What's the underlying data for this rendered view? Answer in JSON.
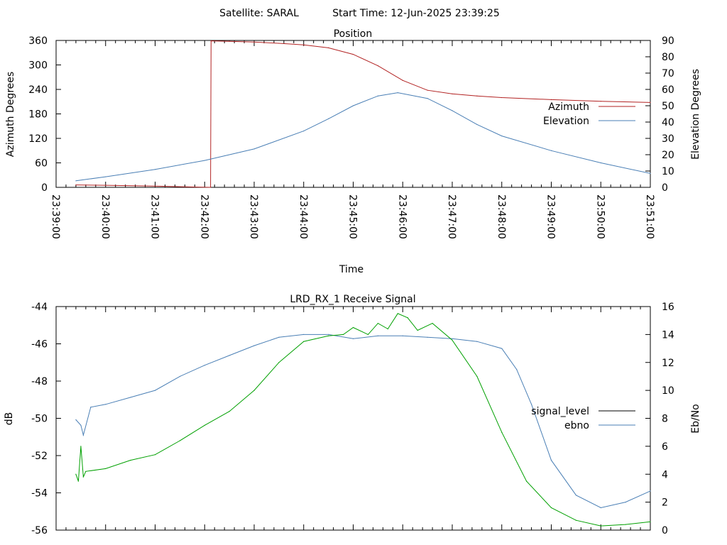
{
  "header": {
    "satellite_label": "Satellite: SARAL",
    "start_time_label": "Start Time: 12-Jun-2025 23:39:25"
  },
  "chart_data": [
    {
      "type": "line",
      "title": "Position",
      "xlabel": "Time",
      "ylabel": "Azimuth Degrees",
      "y2label": "Elevation Degrees",
      "x_ticks": [
        "23:39:00",
        "23:40:00",
        "23:41:00",
        "23:42:00",
        "23:43:00",
        "23:44:00",
        "23:45:00",
        "23:46:00",
        "23:47:00",
        "23:48:00",
        "23:49:00",
        "23:50:00",
        "23:51:00"
      ],
      "xlim_minutes": [
        0,
        12
      ],
      "ylim": [
        0,
        360
      ],
      "y_ticks": [
        "0",
        "60",
        "120",
        "180",
        "240",
        "300",
        "360"
      ],
      "y2lim": [
        0,
        90
      ],
      "y2_ticks": [
        "0",
        "10",
        "20",
        "30",
        "40",
        "50",
        "60",
        "70",
        "80",
        "90"
      ],
      "legend_position": "right",
      "series": [
        {
          "name": "Azimuth",
          "axis": "y",
          "color": "#b22222",
          "x_minutes": [
            0.4,
            1.0,
            2.0,
            3.12,
            3.13,
            3.5,
            4.0,
            4.5,
            5.0,
            5.5,
            6.0,
            6.5,
            7.0,
            7.5,
            8.0,
            8.5,
            9.0,
            10.0,
            11.0,
            12.0
          ],
          "values": [
            6,
            5,
            3,
            0,
            359,
            358,
            356,
            353,
            349,
            342,
            326,
            298,
            262,
            238,
            229,
            224,
            220,
            215,
            211,
            208
          ]
        },
        {
          "name": "Elevation",
          "axis": "y2",
          "color": "#4a7fb5",
          "x_minutes": [
            0.4,
            1.0,
            2.0,
            3.0,
            4.0,
            5.0,
            5.5,
            6.0,
            6.5,
            6.9,
            7.5,
            8.0,
            8.5,
            9.0,
            10.0,
            11.0,
            12.0
          ],
          "values": [
            4,
            6.5,
            11,
            16.5,
            23.5,
            34.5,
            42,
            50,
            56,
            58,
            54.5,
            47,
            38.5,
            31.5,
            22.5,
            15,
            8.5
          ]
        }
      ]
    },
    {
      "type": "line",
      "title": "LRD_RX_1 Receive Signal",
      "ylabel": "dB",
      "y2label": "Eb/No",
      "xlim_minutes": [
        0,
        12
      ],
      "ylim": [
        -56,
        -44
      ],
      "y_ticks": [
        "-44",
        "-46",
        "-48",
        "-50",
        "-52",
        "-54",
        "-56"
      ],
      "y2lim": [
        0,
        16
      ],
      "y2_ticks": [
        "0",
        "2",
        "4",
        "6",
        "8",
        "10",
        "12",
        "14",
        "16"
      ],
      "legend_position": "right",
      "series": [
        {
          "name": "signal_level",
          "axis": "y",
          "color": "#000000",
          "x_minutes": [],
          "values": []
        },
        {
          "name": "ebno",
          "axis": "y2",
          "color": "#4a7fb5",
          "x_minutes": [
            0.4,
            0.5,
            0.55,
            0.7,
            1.0,
            1.5,
            2.0,
            2.5,
            3.0,
            3.5,
            4.0,
            4.5,
            5.0,
            5.5,
            6.0,
            6.5,
            7.0,
            7.5,
            8.0,
            8.5,
            9.0,
            9.3,
            9.6,
            10.0,
            10.5,
            11.0,
            11.5,
            12.0
          ],
          "values": [
            7.9,
            7.5,
            6.8,
            8.8,
            9.0,
            9.5,
            10.0,
            11.0,
            11.8,
            12.5,
            13.2,
            13.8,
            14.0,
            14.0,
            13.7,
            13.9,
            13.9,
            13.8,
            13.7,
            13.5,
            13.0,
            11.5,
            9.0,
            5.0,
            2.5,
            1.6,
            2.0,
            2.8
          ]
        },
        {
          "name": "",
          "axis": "y2",
          "color": "#00a000",
          "x_minutes": [
            0.4,
            0.45,
            0.5,
            0.55,
            0.6,
            1.0,
            1.5,
            2.0,
            2.5,
            3.0,
            3.5,
            4.0,
            4.5,
            5.0,
            5.5,
            5.8,
            6.0,
            6.3,
            6.5,
            6.7,
            6.9,
            7.1,
            7.3,
            7.6,
            8.0,
            8.5,
            9.0,
            9.5,
            10.0,
            10.5,
            11.0,
            11.5,
            12.0
          ],
          "values": [
            4.0,
            3.5,
            6.0,
            3.8,
            4.2,
            4.4,
            5.0,
            5.4,
            6.4,
            7.5,
            8.5,
            10.0,
            12.0,
            13.5,
            13.9,
            14.0,
            14.5,
            14.0,
            14.8,
            14.4,
            15.5,
            15.2,
            14.3,
            14.8,
            13.6,
            11.0,
            7.0,
            3.5,
            1.6,
            0.7,
            0.3,
            0.4,
            0.6
          ]
        }
      ]
    }
  ]
}
